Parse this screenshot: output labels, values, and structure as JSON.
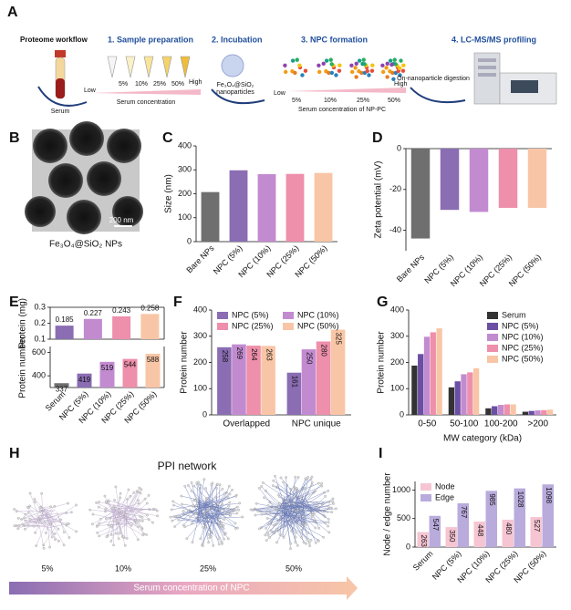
{
  "workflow": {
    "label": "A",
    "title": "Proteome workflow",
    "steps": [
      "1. Sample preparation",
      "2. Incubation",
      "3. NPC formation",
      "4. LC-MS/MS profiling"
    ],
    "serum": "Serum",
    "low": "Low",
    "high": "High",
    "concentrations": [
      "5%",
      "10%",
      "25%",
      "50%"
    ],
    "serum_concentration": "Serum concentration",
    "nanoparticle_formula": "Fe₃O₄@SiO₂",
    "nanoparticle_word": "nanoparticles",
    "npc_concentration": "Serum concentration of NP-PC",
    "digestion": "On-nanoparticle digestion"
  },
  "tem": {
    "label": "B",
    "scale_bar": "200 nm",
    "caption": "Fe₃O₄@SiO₂ NPs"
  },
  "ppi": {
    "label": "H",
    "title": "PPI network",
    "concentrations": [
      "5%",
      "10%",
      "25%",
      "50%"
    ],
    "axis_label": "Serum concentration of NPC"
  },
  "chart_data": [
    {
      "type": "bar",
      "panel": "C",
      "ylabel": "Size (nm)",
      "categories": [
        "Bare NPs",
        "NPC (5%)",
        "NPC (10%)",
        "NPC (25%)",
        "NPC (50%)"
      ],
      "values": [
        207,
        298,
        282,
        283,
        287
      ],
      "colors": [
        "#6f6f6f",
        "#8a6db3",
        "#c28bd0",
        "#ee8fab",
        "#f8c6a6"
      ],
      "ylim": [
        0,
        400
      ],
      "yticks": [
        0,
        100,
        200,
        300,
        400
      ]
    },
    {
      "type": "bar",
      "panel": "D",
      "ylabel": "Zeta potential (mV)",
      "categories": [
        "Bare NPs",
        "NPC (5%)",
        "NPC (10%)",
        "NPC (25%)",
        "NPC (50%)"
      ],
      "values": [
        -44,
        -30,
        -31,
        -29,
        -29
      ],
      "colors": [
        "#6f6f6f",
        "#8a6db3",
        "#c28bd0",
        "#ee8fab",
        "#f8c6a6"
      ],
      "ylim": [
        -50,
        0
      ],
      "yticks": [
        -40,
        -20,
        0
      ]
    },
    {
      "type": "bar",
      "panel": "E",
      "ylabel": "Protein (mg)",
      "values": [
        0.185,
        0.227,
        0.243,
        0.258
      ],
      "colors": [
        "#8a6db3",
        "#c28bd0",
        "#ee8fab",
        "#f8c6a6"
      ],
      "ylim": [
        0.1,
        0.3
      ],
      "yticks": [
        0.1,
        0.2,
        0.3
      ]
    },
    {
      "type": "bar",
      "ylabel": "Protein number",
      "categories": [
        "Serum",
        "NPC (5%)",
        "NPC (10%)",
        "NPC (25%)",
        "NPC (50%)"
      ],
      "values": [
        337,
        419,
        519,
        544,
        588
      ],
      "colors": [
        "#6f6f6f",
        "#8a6db3",
        "#c28bd0",
        "#ee8fab",
        "#f8c6a6"
      ],
      "ylim": [
        300,
        650
      ],
      "yticks": [
        400,
        600
      ]
    },
    {
      "type": "grouped_bar",
      "panel": "F",
      "ylabel": "Protein number",
      "categories": [
        "Overlapped",
        "NPC unique"
      ],
      "series": [
        {
          "name": "NPC (5%)",
          "color": "#8a6db3",
          "values": [
            258,
            161
          ]
        },
        {
          "name": "NPC (10%)",
          "color": "#c28bd0",
          "values": [
            269,
            250
          ]
        },
        {
          "name": "NPC (25%)",
          "color": "#ee8fab",
          "values": [
            264,
            280
          ]
        },
        {
          "name": "NPC (50%)",
          "color": "#f8c6a6",
          "values": [
            263,
            325
          ]
        }
      ],
      "ylim": [
        0,
        400
      ],
      "yticks": [
        0,
        100,
        200,
        300,
        400
      ],
      "legend": "upper left"
    },
    {
      "type": "grouped_bar",
      "panel": "G",
      "ylabel": "Protein number",
      "xlabel": "MW category (kDa)",
      "categories": [
        "0-50",
        "50-100",
        "100-200",
        ">200"
      ],
      "series": [
        {
          "name": "Serum",
          "color": "#333333",
          "values": [
            188,
            105,
            25,
            12
          ]
        },
        {
          "name": "NPC (5%)",
          "color": "#6a4fa3",
          "values": [
            232,
            128,
            33,
            15
          ]
        },
        {
          "name": "NPC (10%)",
          "color": "#c28bd0",
          "values": [
            298,
            155,
            38,
            17
          ]
        },
        {
          "name": "NPC (25%)",
          "color": "#ee8fab",
          "values": [
            315,
            162,
            40,
            18
          ]
        },
        {
          "name": "NPC (50%)",
          "color": "#f8c6a6",
          "values": [
            330,
            178,
            40,
            20
          ]
        }
      ],
      "ylim": [
        0,
        400
      ],
      "yticks": [
        0,
        100,
        200,
        300,
        400
      ],
      "legend": "upper right"
    },
    {
      "type": "grouped_bar",
      "panel": "I",
      "ylabel": "Node / edge number",
      "categories": [
        "Serum",
        "NPC (5%)",
        "NPC (10%)",
        "NPC (25%)",
        "NPC (50%)"
      ],
      "series": [
        {
          "name": "Node",
          "color": "#f6c5d2",
          "values": [
            263,
            350,
            448,
            480,
            527
          ]
        },
        {
          "name": "Edge",
          "color": "#b9abdc",
          "values": [
            547,
            767,
            985,
            1028,
            1098
          ]
        }
      ],
      "ylim": [
        0,
        1150
      ],
      "yticks": [
        0,
        500,
        1000
      ],
      "legend": "upper left"
    }
  ]
}
